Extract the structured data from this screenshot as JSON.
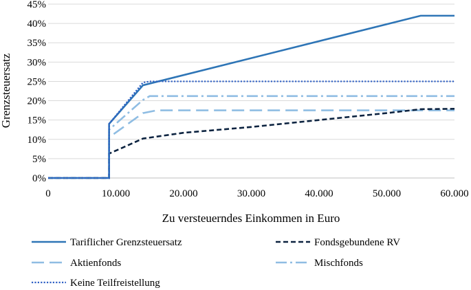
{
  "chart_data": {
    "type": "line",
    "xlabel": "Zu versteuerndes Einkommen in Euro",
    "ylabel": "Grenzsteuersatz",
    "xlim": [
      0,
      60000
    ],
    "ylim": [
      0,
      45
    ],
    "x_ticks": [
      0,
      10000,
      20000,
      30000,
      40000,
      50000,
      60000
    ],
    "x_tick_labels": [
      "0",
      "10.000",
      "20.000",
      "30.000",
      "40.000",
      "50.000",
      "60.000"
    ],
    "y_ticks": [
      0,
      5,
      10,
      15,
      20,
      25,
      30,
      35,
      40,
      45
    ],
    "y_tick_labels": [
      "0%",
      "5%",
      "10%",
      "15%",
      "20%",
      "25%",
      "30%",
      "35%",
      "40%",
      "45%"
    ],
    "grid": "horizontal",
    "legend_position": "bottom",
    "series": [
      {
        "name": "Tariflicher Grenzsteuersatz",
        "color": "#2e75b6",
        "style": "solid",
        "points": [
          [
            0,
            0
          ],
          [
            9000,
            0
          ],
          [
            9000,
            14
          ],
          [
            14000,
            24
          ],
          [
            55000,
            42
          ],
          [
            60000,
            42
          ]
        ]
      },
      {
        "name": "Fondsgebundene RV",
        "color": "#0c2340",
        "style": "dash",
        "points": [
          [
            0,
            0
          ],
          [
            9000,
            0
          ],
          [
            9000,
            6.3
          ],
          [
            14000,
            10.2
          ],
          [
            20000,
            11.7
          ],
          [
            30000,
            13.2
          ],
          [
            40000,
            15.0
          ],
          [
            50000,
            16.8
          ],
          [
            55000,
            17.8
          ],
          [
            60000,
            17.9
          ]
        ]
      },
      {
        "name": "Aktienfonds",
        "color": "#8fbde3",
        "style": "longdash",
        "points": [
          [
            0,
            0
          ],
          [
            9000,
            0
          ],
          [
            9000,
            10.5
          ],
          [
            14000,
            16.8
          ],
          [
            16000,
            17.5
          ],
          [
            60000,
            17.5
          ]
        ]
      },
      {
        "name": "Mischfonds",
        "color": "#8fbde3",
        "style": "dashdot",
        "points": [
          [
            0,
            0
          ],
          [
            9000,
            0
          ],
          [
            9000,
            12.5
          ],
          [
            14000,
            20.2
          ],
          [
            15000,
            21.2
          ],
          [
            60000,
            21.2
          ]
        ]
      },
      {
        "name": "Keine Teilfreistellung",
        "color": "#2e5fc4",
        "style": "dot",
        "points": [
          [
            0,
            0
          ],
          [
            9000,
            0
          ],
          [
            9000,
            14
          ],
          [
            14000,
            24.7
          ],
          [
            15000,
            25
          ],
          [
            60000,
            25
          ]
        ]
      }
    ]
  }
}
